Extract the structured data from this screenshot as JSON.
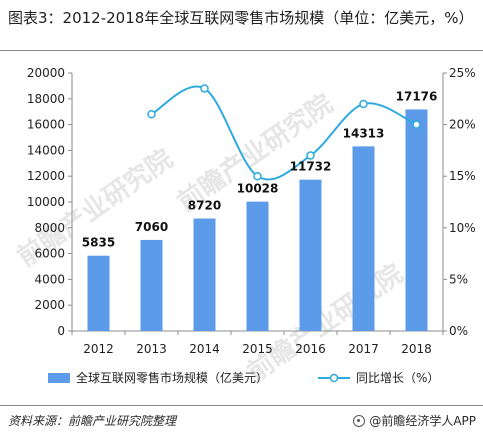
{
  "title": "图表3：2012-2018年全球互联网零售市场规模（单位：亿美元，%）",
  "footer": {
    "source": "资料来源：前瞻产业研究院整理",
    "brand": "@前瞻经济学人APP"
  },
  "colors": {
    "bar": "#5b9bea",
    "line": "#2eaadf",
    "axis": "#8c8c8c",
    "text": "#1f1f1f",
    "watermark": "#e6e6e6"
  },
  "watermark": "前瞻产业研究院",
  "chart_data": {
    "type": "bar",
    "categories": [
      "2012",
      "2013",
      "2014",
      "2015",
      "2016",
      "2017",
      "2018"
    ],
    "series": [
      {
        "name": "全球互联网零售市场规模（亿美元）",
        "type": "bar",
        "axis": "left",
        "values": [
          5835,
          7060,
          8720,
          10028,
          11732,
          14313,
          17176
        ],
        "labels": [
          "5835",
          "7060",
          "8720",
          "10028",
          "11732",
          "14313",
          "17176"
        ]
      },
      {
        "name": "同比增长（%）",
        "type": "line",
        "axis": "right",
        "values": [
          null,
          21.0,
          23.5,
          15.0,
          17.0,
          22.0,
          20.0
        ]
      }
    ],
    "ylim_left": [
      0,
      20000
    ],
    "yticks_left": [
      "0",
      "2000",
      "4000",
      "6000",
      "8000",
      "10000",
      "12000",
      "14000",
      "16000",
      "18000",
      "20000"
    ],
    "ylim_right": [
      0,
      25
    ],
    "yticks_right": [
      "0%",
      "5%",
      "10%",
      "15%",
      "20%",
      "25%"
    ],
    "grid": false,
    "legend_position": "bottom"
  }
}
